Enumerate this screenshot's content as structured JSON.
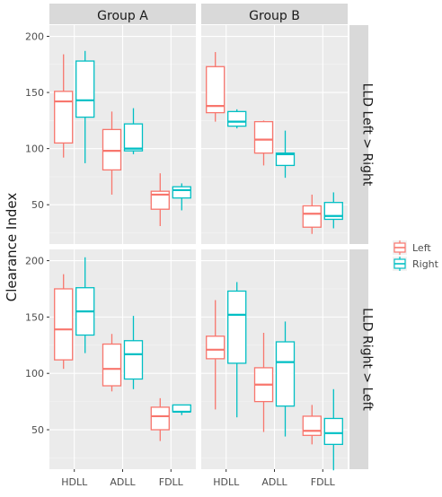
{
  "chart_data": {
    "type": "box",
    "ylabel": "Clearance Index",
    "xlabel": "",
    "categories": [
      "HDLL",
      "ADLL",
      "FDLL"
    ],
    "columns": [
      "Group A",
      "Group B"
    ],
    "rows": [
      "LLD Left > Right",
      "LLD Right > Left"
    ],
    "ylim": [
      15,
      210
    ],
    "yticks": [
      50,
      100,
      150,
      200
    ],
    "grid": true,
    "legend": {
      "placement": "right",
      "entries": [
        "Left",
        "Right"
      ]
    },
    "series_colors": {
      "Left": "#F8766D",
      "Right": "#00BFC4"
    },
    "panels": [
      {
        "column": "Group A",
        "row": "LLD Left > Right",
        "boxes": [
          {
            "category": "HDLL",
            "series": "Left",
            "min": 92,
            "q1": 105,
            "median": 142,
            "q3": 151,
            "max": 184
          },
          {
            "category": "HDLL",
            "series": "Right",
            "min": 87,
            "q1": 128,
            "median": 143,
            "q3": 178,
            "max": 187
          },
          {
            "category": "ADLL",
            "series": "Left",
            "min": 59,
            "q1": 81,
            "median": 98,
            "q3": 117,
            "max": 133
          },
          {
            "category": "ADLL",
            "series": "Right",
            "min": 95,
            "q1": 98,
            "median": 100,
            "q3": 122,
            "max": 136
          },
          {
            "category": "FDLL",
            "series": "Left",
            "min": 31,
            "q1": 46,
            "median": 59,
            "q3": 62,
            "max": 78
          },
          {
            "category": "FDLL",
            "series": "Right",
            "min": 45,
            "q1": 56,
            "median": 63,
            "q3": 66,
            "max": 69
          }
        ]
      },
      {
        "column": "Group B",
        "row": "LLD Left > Right",
        "boxes": [
          {
            "category": "HDLL",
            "series": "Left",
            "min": 124,
            "q1": 132,
            "median": 138,
            "q3": 173,
            "max": 186
          },
          {
            "category": "HDLL",
            "series": "Right",
            "min": 118,
            "q1": 120,
            "median": 124,
            "q3": 133,
            "max": 135
          },
          {
            "category": "ADLL",
            "series": "Left",
            "min": 85,
            "q1": 96,
            "median": 108,
            "q3": 124,
            "max": 125
          },
          {
            "category": "ADLL",
            "series": "Right",
            "min": 74,
            "q1": 85,
            "median": 95,
            "q3": 96,
            "max": 116
          },
          {
            "category": "FDLL",
            "series": "Left",
            "min": 24,
            "q1": 30,
            "median": 42,
            "q3": 49,
            "max": 59
          },
          {
            "category": "FDLL",
            "series": "Right",
            "min": 29,
            "q1": 37,
            "median": 40,
            "q3": 52,
            "max": 61
          }
        ]
      },
      {
        "column": "Group A",
        "row": "LLD Right > Left",
        "boxes": [
          {
            "category": "HDLL",
            "series": "Left",
            "min": 104,
            "q1": 112,
            "median": 139,
            "q3": 175,
            "max": 188
          },
          {
            "category": "HDLL",
            "series": "Right",
            "min": 118,
            "q1": 134,
            "median": 155,
            "q3": 176,
            "max": 203
          },
          {
            "category": "ADLL",
            "series": "Left",
            "min": 84,
            "q1": 89,
            "median": 104,
            "q3": 126,
            "max": 135
          },
          {
            "category": "ADLL",
            "series": "Right",
            "min": 86,
            "q1": 95,
            "median": 117,
            "q3": 129,
            "max": 151
          },
          {
            "category": "FDLL",
            "series": "Left",
            "min": 40,
            "q1": 50,
            "median": 62,
            "q3": 70,
            "max": 78
          },
          {
            "category": "FDLL",
            "series": "Right",
            "min": 63,
            "q1": 66,
            "median": 66,
            "q3": 72,
            "max": 72
          }
        ]
      },
      {
        "column": "Group B",
        "row": "LLD Right > Left",
        "boxes": [
          {
            "category": "HDLL",
            "series": "Left",
            "min": 68,
            "q1": 113,
            "median": 121,
            "q3": 133,
            "max": 165
          },
          {
            "category": "HDLL",
            "series": "Right",
            "min": 61,
            "q1": 109,
            "median": 152,
            "q3": 173,
            "max": 181
          },
          {
            "category": "ADLL",
            "series": "Left",
            "min": 48,
            "q1": 75,
            "median": 90,
            "q3": 105,
            "max": 136
          },
          {
            "category": "ADLL",
            "series": "Right",
            "min": 44,
            "q1": 71,
            "median": 110,
            "q3": 128,
            "max": 146
          },
          {
            "category": "FDLL",
            "series": "Left",
            "min": 37,
            "q1": 45,
            "median": 49,
            "q3": 62,
            "max": 72
          },
          {
            "category": "FDLL",
            "series": "Right",
            "min": 14,
            "q1": 37,
            "median": 47,
            "q3": 60,
            "max": 86
          }
        ]
      }
    ]
  }
}
